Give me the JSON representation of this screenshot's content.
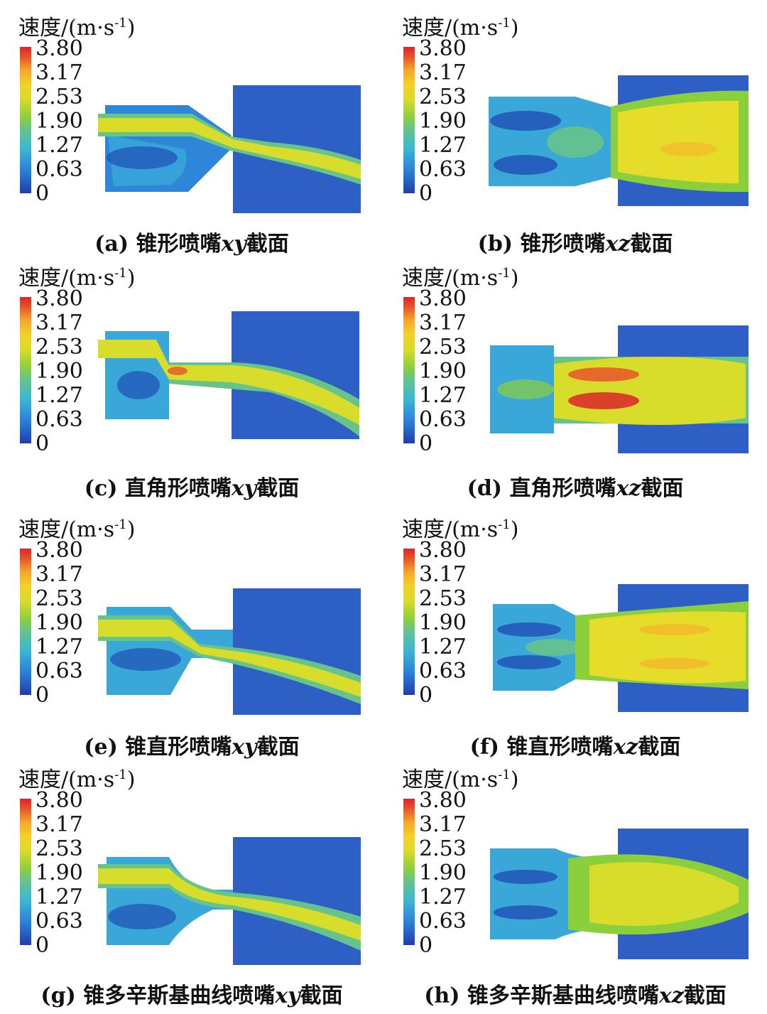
{
  "legend": {
    "unit_label": "速度/(m·s",
    "unit_exp": "-1",
    "unit_close": ")",
    "ticks": [
      "3.80",
      "3.17",
      "2.53",
      "1.90",
      "1.27",
      "0.63",
      "0"
    ]
  },
  "panels": [
    {
      "tag": "(a)",
      "name": "锥形喷嘴",
      "axes": "xy",
      "suffix": "截面"
    },
    {
      "tag": "(b)",
      "name": "锥形喷嘴",
      "axes": "xz",
      "suffix": "截面"
    },
    {
      "tag": "(c)",
      "name": "直角形喷嘴",
      "axes": "xy",
      "suffix": "截面"
    },
    {
      "tag": "(d)",
      "name": "直角形喷嘴",
      "axes": "xz",
      "suffix": "截面"
    },
    {
      "tag": "(e)",
      "name": "锥直形喷嘴",
      "axes": "xy",
      "suffix": "截面"
    },
    {
      "tag": "(f)",
      "name": "锥直形喷嘴",
      "axes": "xz",
      "suffix": "截面"
    },
    {
      "tag": "(g)",
      "name": "锥多辛斯基曲线喷嘴",
      "axes": "xy",
      "suffix": "截面"
    },
    {
      "tag": "(h)",
      "name": "锥多辛斯基曲线喷嘴",
      "axes": "xz",
      "suffix": "截面"
    }
  ],
  "colors": {
    "low": "#1f3fa8",
    "mid": "#8ccf3c",
    "high": "#f2d22a",
    "max": "#d9262a"
  }
}
